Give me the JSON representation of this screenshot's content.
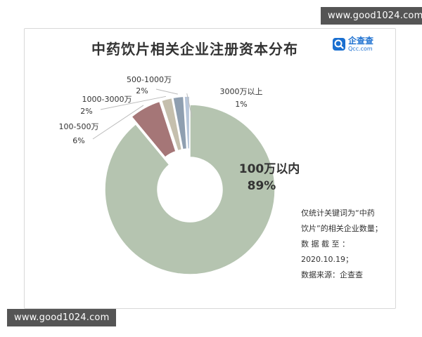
{
  "chart_data": {
    "type": "pie",
    "title": "中药饮片相关企业注册资本分布",
    "categories": [
      "100万以内",
      "100-500万",
      "1000-3000万",
      "500-1000万",
      "3000万以上"
    ],
    "values": [
      89,
      6,
      2,
      2,
      1
    ],
    "value_labels": [
      "89%",
      "6%",
      "2%",
      "2%",
      "1%"
    ],
    "colors": [
      "#b5c4b0",
      "#a57677",
      "#c5bfad",
      "#8f9fb0",
      "#b7c6da"
    ],
    "donut": true
  },
  "logo": {
    "name": "企查查",
    "sub": "Qcc.com"
  },
  "note": [
    "仅统计关键词为“中药",
    "饮片”的相关企业数量；",
    "数  据  截  至  ：",
    "2020.10.19；",
    "数据来源：企查查"
  ],
  "watermark": {
    "top": "www.good1024.com",
    "bottom": "www.good1024.com"
  }
}
